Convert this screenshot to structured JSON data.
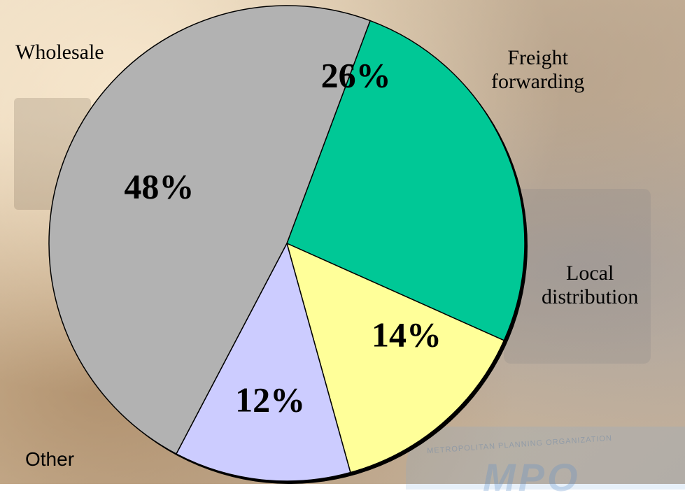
{
  "chart_data": {
    "type": "pie",
    "slices": [
      {
        "label": "Wholesale",
        "value": 26,
        "value_label": "26%",
        "color": "#00c896"
      },
      {
        "label": "Freight forwarding",
        "value": 14,
        "value_label": "14%",
        "color": "#ffff99"
      },
      {
        "label": "Local distribution",
        "value": 12,
        "value_label": "12%",
        "color": "#ccccff"
      },
      {
        "label": "Other",
        "value": 48,
        "value_label": "48%",
        "color": "#b2b2b2"
      }
    ],
    "category_labels": {
      "wholesale": "Wholesale",
      "freight_line1": "Freight",
      "freight_line2": "forwarding",
      "local_line1": "Local",
      "local_line2": "distribution",
      "other": "Other"
    },
    "title": "",
    "legend": "none"
  },
  "logo": {
    "text": "METROPOLITAN PLANNING ORGANIZATION",
    "mark": "MPO"
  }
}
